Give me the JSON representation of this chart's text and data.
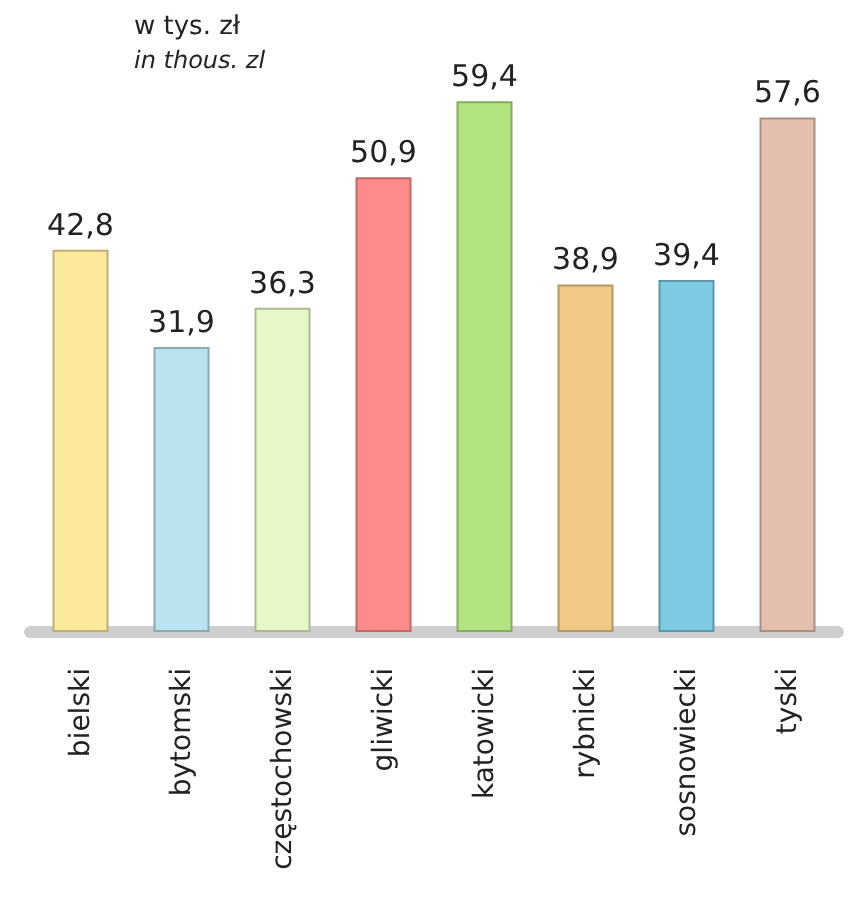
{
  "chart_data": {
    "type": "bar",
    "title": "w tys. zł",
    "subtitle": "in thous. zl",
    "categories": [
      "bielski",
      "bytomski",
      "częstochowski",
      "gliwicki",
      "katowicki",
      "rybnicki",
      "sosnowiecki",
      "tyski"
    ],
    "values": [
      42.8,
      31.9,
      36.3,
      50.9,
      59.4,
      38.9,
      39.4,
      57.6
    ],
    "value_labels": [
      "42,8",
      "31,9",
      "36,3",
      "50,9",
      "59,4",
      "38,9",
      "39,4",
      "57,6"
    ],
    "colors": [
      "#fde99a",
      "#b9e3ef",
      "#e6f7c8",
      "#ff8a8a",
      "#b3e37e",
      "#f0c987",
      "#7ccbe3",
      "#e4bfae"
    ]
  }
}
